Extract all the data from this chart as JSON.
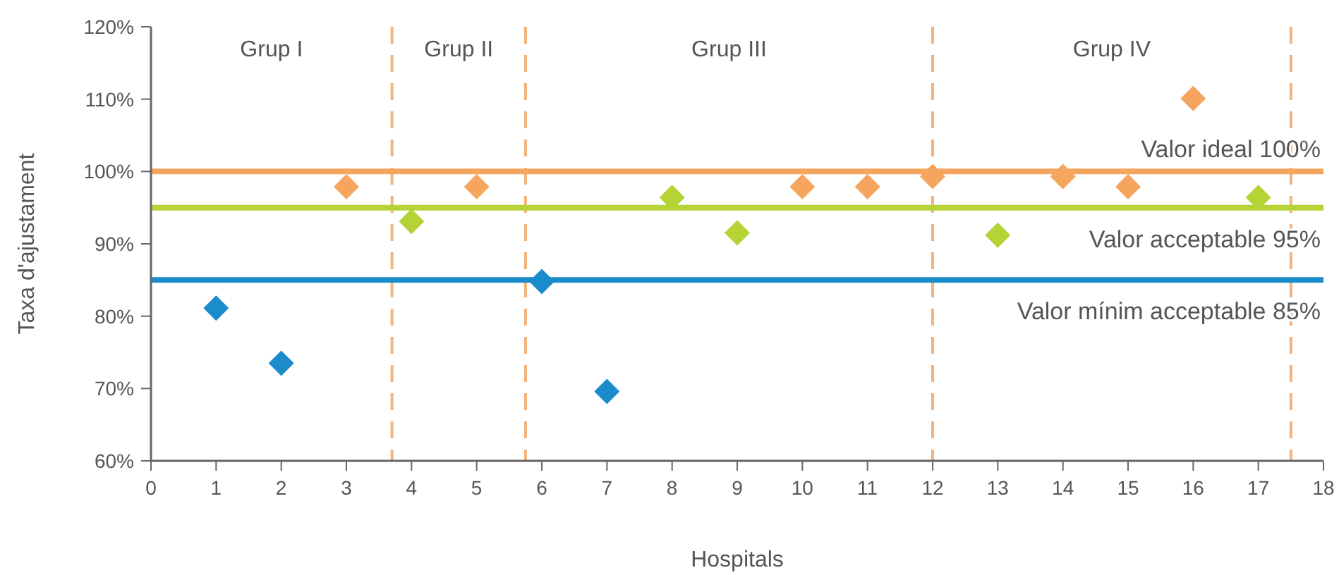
{
  "chart_data": {
    "type": "scatter",
    "xlabel": "Hospitals",
    "ylabel": "Taxa d'ajustament",
    "xlim": [
      0,
      18
    ],
    "xticks": [
      0,
      1,
      2,
      3,
      4,
      5,
      6,
      7,
      8,
      9,
      10,
      11,
      12,
      13,
      14,
      15,
      16,
      17,
      18
    ],
    "ylim": [
      60,
      120
    ],
    "yticks": [
      {
        "value": 60,
        "label": "60%"
      },
      {
        "value": 70,
        "label": "70%"
      },
      {
        "value": 80,
        "label": "80%"
      },
      {
        "value": 90,
        "label": "90%"
      },
      {
        "value": 100,
        "label": "100%"
      },
      {
        "value": 110,
        "label": "110%"
      },
      {
        "value": 120,
        "label": "120%"
      }
    ],
    "marker": "diamond",
    "grid": false,
    "series": [
      {
        "color": "#1a8ccc",
        "x": [
          1,
          2,
          6,
          7
        ],
        "values": [
          81.1,
          73.5,
          84.8,
          69.6
        ]
      },
      {
        "color": "#b5d334",
        "x": [
          4,
          8,
          9,
          13,
          17
        ],
        "values": [
          93.1,
          96.4,
          91.5,
          91.2,
          96.4
        ]
      },
      {
        "color": "#f5a55e",
        "x": [
          3,
          5,
          10,
          11,
          12,
          14,
          15,
          16
        ],
        "values": [
          97.9,
          97.9,
          97.9,
          97.9,
          99.3,
          99.3,
          97.9,
          110.1
        ]
      }
    ],
    "ref_lines": [
      {
        "axis": "y",
        "value": 100,
        "label": "Valor ideal 100%",
        "color": "#f5a55e",
        "line_style": "solid"
      },
      {
        "axis": "y",
        "value": 95,
        "label": "Valor acceptable 95%",
        "color": "#b5d334",
        "line_style": "solid"
      },
      {
        "axis": "y",
        "value": 85,
        "label": "Valor mínim acceptable 85%",
        "color": "#1a8ccc",
        "line_style": "solid"
      },
      {
        "axis": "x",
        "value": 3.7,
        "color": "#f5b27a",
        "line_style": "dashed"
      },
      {
        "axis": "x",
        "value": 5.75,
        "color": "#f5b27a",
        "line_style": "dashed"
      },
      {
        "axis": "x",
        "value": 12,
        "color": "#f5b27a",
        "line_style": "dashed"
      },
      {
        "axis": "x",
        "value": 17.5,
        "color": "#f5b27a",
        "line_style": "dashed"
      }
    ],
    "annotations": [
      "Grup I",
      "Grup II",
      "Grup III",
      "Grup IV"
    ]
  }
}
